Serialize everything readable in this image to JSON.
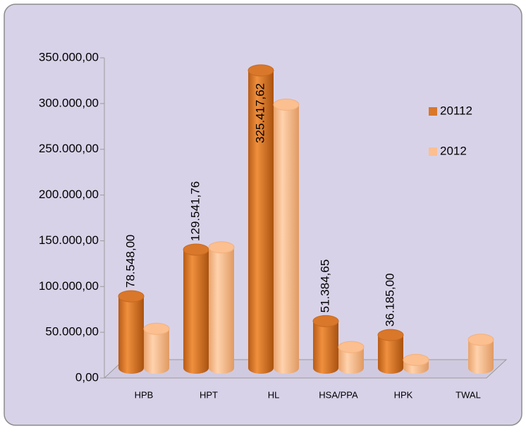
{
  "chart_data": {
    "type": "bar3d",
    "categories": [
      "HPB",
      "HPT",
      "HL",
      "HSA/PPA",
      "HPK",
      "TWAL"
    ],
    "series": [
      {
        "name": "20112",
        "color": "#d9772a",
        "values": [
          78548,
          129541.76,
          325417.62,
          51384.65,
          36185,
          null
        ],
        "value_labels": [
          "78.548,00",
          "129.541,76",
          "325.417,62",
          "51.384,65",
          "36.185,00",
          null
        ]
      },
      {
        "name": "2012",
        "color": "#fbbf90",
        "values": [
          43000,
          132000,
          288000,
          23000,
          9000,
          31000
        ]
      }
    ],
    "ylim": [
      0,
      350000
    ],
    "yticks": [
      {
        "value": 0,
        "label": "0,00"
      },
      {
        "value": 50000,
        "label": "50.000,00"
      },
      {
        "value": 100000,
        "label": "100.000,00"
      },
      {
        "value": 150000,
        "label": "150.000,00"
      },
      {
        "value": 200000,
        "label": "200.000,00"
      },
      {
        "value": 250000,
        "label": "250.000,00"
      },
      {
        "value": 300000,
        "label": "300.000,00"
      },
      {
        "value": 350000,
        "label": "350.000,00"
      }
    ],
    "legend": "right"
  }
}
